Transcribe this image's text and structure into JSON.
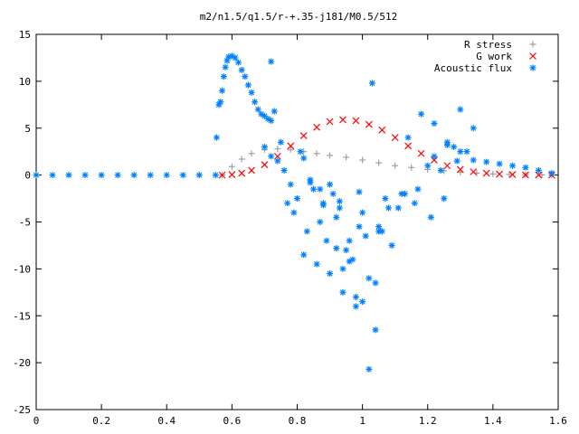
{
  "chart_data": {
    "type": "scatter",
    "title": "m2/n1.5/q1.5/r-+.35-j181/M0.5/512",
    "xlabel": "",
    "ylabel": "",
    "xlim": [
      0,
      1.6
    ],
    "ylim": [
      -25,
      15
    ],
    "xticks": [
      0,
      0.2,
      0.4,
      0.6,
      0.8,
      1,
      1.2,
      1.4,
      1.6
    ],
    "xtick_labels": [
      "0",
      "0.2",
      "0.4",
      "0.6",
      "0.8",
      "1",
      "1.2",
      "1.4",
      "1.6"
    ],
    "yticks": [
      -25,
      -20,
      -15,
      -10,
      -5,
      0,
      5,
      10,
      15
    ],
    "ytick_labels": [
      "-25",
      "-20",
      "-15",
      "-10",
      "-5",
      "0",
      "5",
      "10",
      "15"
    ],
    "grid": false,
    "legend_position": "top-right",
    "series": [
      {
        "name": "R stress",
        "marker": "plus",
        "color": "#a0a0a0",
        "x": [
          0.57,
          0.6,
          0.63,
          0.66,
          0.7,
          0.74,
          0.78,
          0.82,
          0.86,
          0.9,
          0.95,
          1.0,
          1.05,
          1.1,
          1.15,
          1.2,
          1.25,
          1.3,
          1.35,
          1.4,
          1.45,
          1.5,
          1.55,
          1.58
        ],
        "y": [
          0.0,
          0.9,
          1.7,
          2.3,
          2.7,
          2.8,
          2.7,
          2.5,
          2.3,
          2.1,
          1.9,
          1.6,
          1.3,
          1.0,
          0.8,
          0.6,
          0.45,
          0.3,
          0.2,
          0.12,
          0.07,
          0.04,
          0.02,
          0.01
        ]
      },
      {
        "name": "G work",
        "marker": "cross",
        "color": "#ff0000",
        "x": [
          0.57,
          0.6,
          0.63,
          0.66,
          0.7,
          0.74,
          0.78,
          0.82,
          0.86,
          0.9,
          0.94,
          0.98,
          1.02,
          1.06,
          1.1,
          1.14,
          1.18,
          1.22,
          1.26,
          1.3,
          1.34,
          1.38,
          1.42,
          1.46,
          1.5,
          1.54,
          1.58
        ],
        "y": [
          0.0,
          0.05,
          0.2,
          0.5,
          1.1,
          2.0,
          3.1,
          4.2,
          5.1,
          5.7,
          5.9,
          5.8,
          5.4,
          4.8,
          4.0,
          3.1,
          2.3,
          1.6,
          1.0,
          0.6,
          0.35,
          0.2,
          0.1,
          0.05,
          0.02,
          0.01,
          0.0
        ]
      },
      {
        "name": "Acoustic flux",
        "marker": "star",
        "color": "#0080ff",
        "x": [
          0.0,
          0.05,
          0.1,
          0.15,
          0.2,
          0.25,
          0.3,
          0.35,
          0.4,
          0.45,
          0.5,
          0.55,
          0.553,
          0.56,
          0.565,
          0.57,
          0.575,
          0.58,
          0.585,
          0.59,
          0.6,
          0.61,
          0.62,
          0.63,
          0.64,
          0.65,
          0.66,
          0.67,
          0.68,
          0.69,
          0.7,
          0.71,
          0.72,
          0.7,
          0.72,
          0.74,
          0.72,
          0.75,
          0.73,
          0.76,
          0.78,
          0.8,
          0.82,
          0.84,
          0.77,
          0.79,
          0.81,
          0.83,
          0.85,
          0.87,
          0.89,
          0.91,
          0.93,
          0.95,
          0.97,
          0.99,
          1.01,
          1.03,
          1.05,
          1.07,
          1.09,
          0.82,
          0.86,
          0.9,
          0.94,
          0.98,
          1.02,
          1.06,
          0.88,
          0.92,
          0.96,
          1.0,
          1.04,
          0.9,
          0.94,
          0.98,
          1.02,
          1.04,
          1.08,
          1.12,
          1.16,
          1.2,
          1.24,
          1.28,
          1.32,
          1.14,
          1.18,
          1.22,
          1.26,
          1.3,
          1.34,
          1.13,
          1.17,
          1.21,
          1.25,
          1.29,
          1.22,
          1.26,
          1.3,
          1.34,
          1.38,
          1.42,
          1.46,
          1.5,
          1.54,
          1.58,
          0.87,
          0.93,
          0.99,
          1.05,
          1.11,
          0.84,
          0.88,
          0.92,
          0.96,
          1.0
        ],
        "y": [
          0,
          0,
          0,
          0,
          0,
          0,
          0,
          0,
          0,
          0,
          0,
          0,
          4.0,
          7.5,
          7.8,
          9.0,
          10.5,
          11.5,
          12.2,
          12.6,
          12.7,
          12.5,
          12.0,
          11.2,
          10.5,
          9.6,
          8.8,
          7.8,
          7.0,
          6.5,
          6.3,
          6.0,
          5.8,
          3.0,
          2.0,
          1.5,
          12.1,
          3.5,
          6.8,
          0.5,
          -1.0,
          -2.5,
          1.8,
          -0.5,
          -3.0,
          -4.0,
          2.5,
          -6.0,
          -1.5,
          -5.0,
          -7.0,
          -2.0,
          -3.5,
          -8.0,
          -9.0,
          -1.8,
          -6.5,
          9.8,
          -5.5,
          -2.5,
          -7.5,
          -8.5,
          -9.5,
          -10.5,
          -12.5,
          -13.0,
          -11.0,
          -6.0,
          -3.0,
          -4.5,
          -7.0,
          -4.0,
          -16.5,
          -1.0,
          -10.0,
          -14.0,
          -20.7,
          -11.5,
          -3.5,
          -2.0,
          -3.0,
          1.0,
          0.5,
          3.0,
          2.5,
          4.0,
          6.5,
          5.5,
          3.5,
          7.0,
          5.0,
          -2.0,
          -1.5,
          -4.5,
          -2.5,
          1.5,
          2.0,
          3.2,
          2.5,
          1.6,
          1.4,
          1.2,
          1.0,
          0.8,
          0.5,
          0.2,
          -1.5,
          -2.8,
          -5.5,
          -6.0,
          -3.5,
          -0.8,
          -3.2,
          -7.8,
          -9.2,
          -13.5
        ]
      }
    ]
  }
}
